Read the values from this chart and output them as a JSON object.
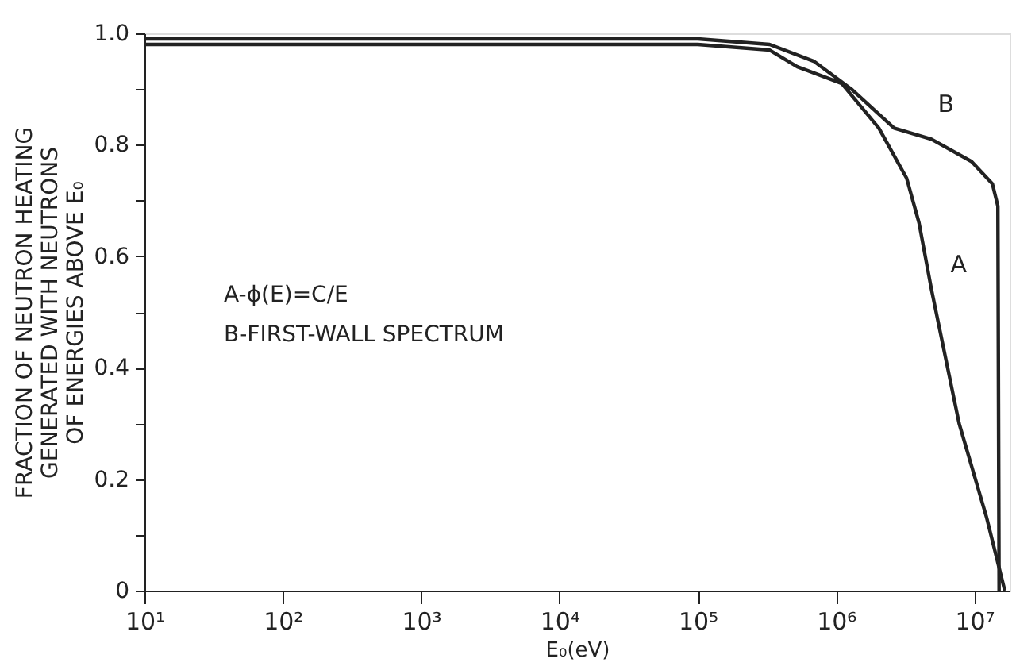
{
  "chart_data": {
    "type": "line",
    "xlabel": "E₀(eV)",
    "ylabel": [
      "FRACTION OF NEUTRON HEATING",
      "GENERATED WITH NEUTRONS",
      "OF ENERGIES ABOVE E₀"
    ],
    "annotations": [
      "A-ϕ(E)=C/E",
      "B-FIRST-WALL SPECTRUM"
    ],
    "log": "x",
    "grid": false,
    "marker": "none",
    "line_style": "solid",
    "xlim": [
      10,
      18000000
    ],
    "xticks": [
      {
        "value": 10,
        "label": "10¹"
      },
      {
        "value": 100,
        "label": "10²"
      },
      {
        "value": 1000,
        "label": "10³"
      },
      {
        "value": 10000,
        "label": "10⁴"
      },
      {
        "value": 100000,
        "label": "10⁵"
      },
      {
        "value": 1000000,
        "label": "10⁶"
      },
      {
        "value": 10000000,
        "label": "10⁷"
      }
    ],
    "ylim": [
      0,
      1.0
    ],
    "yticks": [
      0,
      {
        "value": 0.1,
        "label": null
      },
      0.2,
      {
        "value": 0.3,
        "label": null
      },
      0.4,
      {
        "value": 0.5,
        "label": null
      },
      0.6,
      {
        "value": 0.7,
        "label": null
      },
      0.8,
      {
        "value": 0.9,
        "label": null
      },
      {
        "value": 1.0,
        "label": "1.0"
      }
    ],
    "series": [
      {
        "name": "A",
        "color": "#222222",
        "x": [
          10,
          100000,
          331000,
          525000,
          1100000,
          2040000,
          3240000,
          3980000,
          4900000,
          7760000,
          12300000,
          16600000
        ],
        "values": [
          0.98,
          0.98,
          0.97,
          0.94,
          0.91,
          0.83,
          0.74,
          0.66,
          0.54,
          0.3,
          0.13,
          0
        ]
      },
      {
        "name": "B",
        "color": "#222222",
        "x": [
          10,
          100000,
          331000,
          690000,
          1290000,
          2630000,
          4900000,
          9550000,
          13500000,
          14800000,
          15100000
        ],
        "values": [
          0.99,
          0.99,
          0.98,
          0.95,
          0.9,
          0.83,
          0.81,
          0.77,
          0.73,
          0.69,
          0
        ]
      }
    ]
  }
}
